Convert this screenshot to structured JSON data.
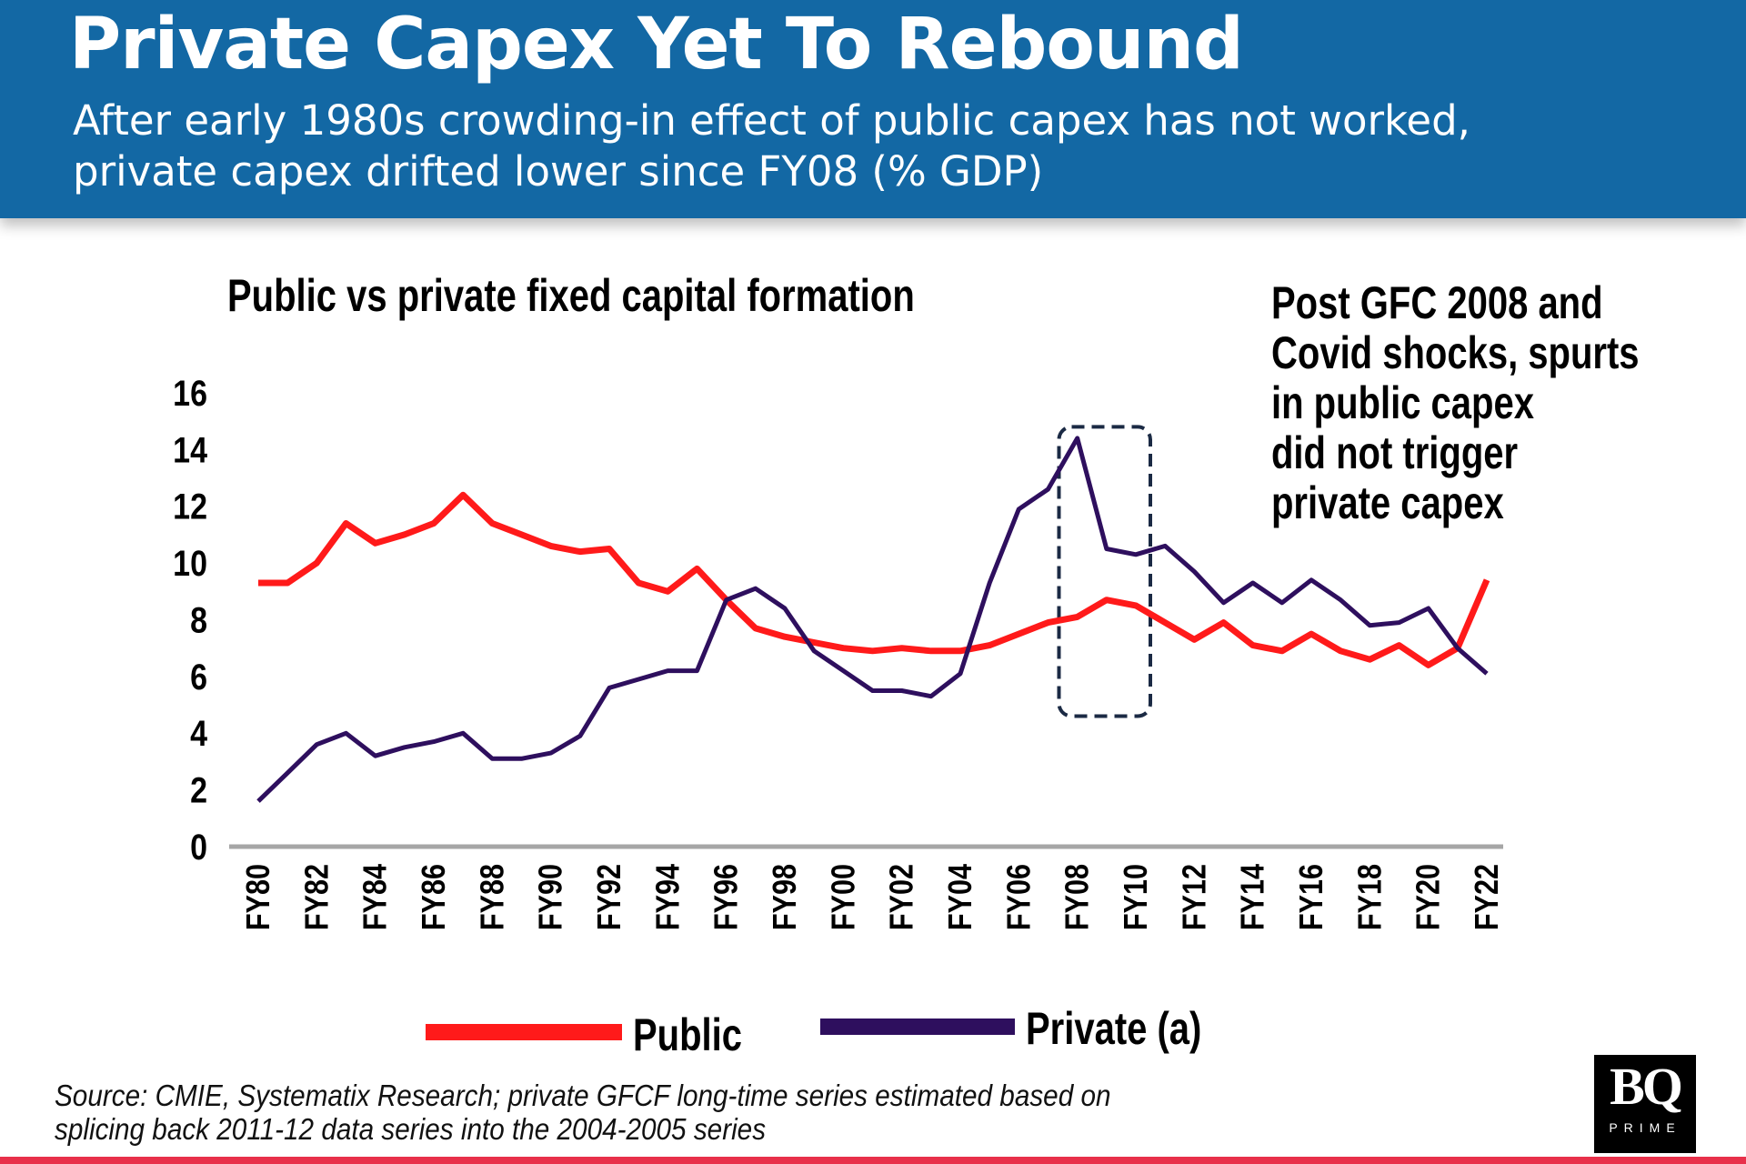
{
  "header": {
    "title": "Private Capex Yet To Rebound",
    "subtitle_line1": "After early 1980s crowding-in effect of public capex has not worked,",
    "subtitle_line2": "private capex drifted lower since FY08 (% GDP)"
  },
  "annotation": [
    "Post GFC 2008 and",
    "Covid shocks, spurts",
    "in public capex",
    "did not trigger",
    "private capex"
  ],
  "source": [
    "Source: CMIE, Systematix Research; private GFCF long-time series estimated based on",
    "splicing back 2011-12 data series into the 2004-2005 series"
  ],
  "logo": {
    "text": "BQ",
    "sub": "PRIME"
  },
  "colors": {
    "header": "#1368a4",
    "public": "#ff1a1a",
    "private": "#2e0f5e",
    "highlight_box": "#1b2a44",
    "bottom_bar": "#e8304a"
  },
  "chart_data": {
    "type": "line",
    "title": "Public vs private fixed capital formation",
    "xlabel": "",
    "ylabel": "",
    "ylim": [
      0,
      16
    ],
    "yticks": [
      0,
      2,
      4,
      6,
      8,
      10,
      12,
      14,
      16
    ],
    "x": [
      "FY80",
      "FY81",
      "FY82",
      "FY83",
      "FY84",
      "FY85",
      "FY86",
      "FY87",
      "FY88",
      "FY89",
      "FY90",
      "FY91",
      "FY92",
      "FY93",
      "FY94",
      "FY95",
      "FY96",
      "FY97",
      "FY98",
      "FY99",
      "FY00",
      "FY01",
      "FY02",
      "FY03",
      "FY04",
      "FY05",
      "FY06",
      "FY07",
      "FY08",
      "FY09",
      "FY10",
      "FY11",
      "FY12",
      "FY13",
      "FY14",
      "FY15",
      "FY16",
      "FY17",
      "FY18",
      "FY19",
      "FY20",
      "FY21",
      "FY22"
    ],
    "xticks": [
      "FY80",
      "FY82",
      "FY84",
      "FY86",
      "FY88",
      "FY90",
      "FY92",
      "FY94",
      "FY96",
      "FY98",
      "FY00",
      "FY02",
      "FY04",
      "FY06",
      "FY08",
      "FY10",
      "FY12",
      "FY14",
      "FY16",
      "FY18",
      "FY20",
      "FY22"
    ],
    "series": [
      {
        "name": "Public",
        "values": [
          9.3,
          9.3,
          10.0,
          11.4,
          10.7,
          11.0,
          11.4,
          12.4,
          11.4,
          11.0,
          10.6,
          10.4,
          10.5,
          9.3,
          9.0,
          9.8,
          8.7,
          7.7,
          7.4,
          7.2,
          7.0,
          6.9,
          7.0,
          6.9,
          6.9,
          7.1,
          7.5,
          7.9,
          8.1,
          8.7,
          8.5,
          7.9,
          7.3,
          7.9,
          7.1,
          6.9,
          7.5,
          6.9,
          6.6,
          7.1,
          6.4,
          7.0,
          9.4
        ]
      },
      {
        "name": "Private (a)",
        "values": [
          1.6,
          2.6,
          3.6,
          4.0,
          3.2,
          3.5,
          3.7,
          4.0,
          3.1,
          3.1,
          3.3,
          3.9,
          5.6,
          5.9,
          6.2,
          6.2,
          8.7,
          9.1,
          8.4,
          6.9,
          6.2,
          5.5,
          5.5,
          5.3,
          6.1,
          9.3,
          11.9,
          12.6,
          14.4,
          10.5,
          10.3,
          10.6,
          9.7,
          8.6,
          9.3,
          8.6,
          9.4,
          8.7,
          7.8,
          7.9,
          8.4,
          7.0,
          6.1
        ]
      }
    ],
    "highlight": {
      "from": "FY07",
      "to": "FY10"
    },
    "legend": "bottom",
    "grid": false
  }
}
